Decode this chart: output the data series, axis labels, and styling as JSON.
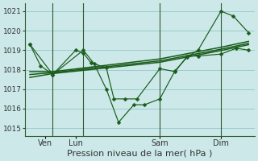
{
  "background_color": "#cce8e8",
  "grid_color": "#99cccc",
  "line_color": "#1a5c1a",
  "xlabel": "Pression niveau de la mer( hPa )",
  "yticks": [
    1015,
    1016,
    1017,
    1018,
    1019,
    1020,
    1021
  ],
  "ylim": [
    1014.6,
    1021.4
  ],
  "xlim": [
    -0.3,
    14.7
  ],
  "xtick_labels": [
    "Ven",
    "Lun",
    "Sam",
    "Dim"
  ],
  "xtick_positions": [
    1,
    3,
    8.5,
    12.5
  ],
  "vline_positions": [
    1.5,
    3.5,
    8.5,
    12.5
  ],
  "series_jagged_x": [
    0.0,
    0.7,
    1.5,
    3.0,
    3.5,
    4.0,
    5.0,
    5.5,
    6.2,
    7.0,
    8.5,
    9.5,
    10.3,
    11.0,
    12.5,
    13.5,
    14.3
  ],
  "series_jagged_y": [
    1019.3,
    1018.2,
    1017.75,
    1019.0,
    1018.85,
    1018.35,
    1018.1,
    1016.5,
    1016.5,
    1016.5,
    1018.05,
    1017.9,
    1018.7,
    1018.7,
    1018.8,
    1019.1,
    1019.0
  ],
  "series_low_x": [
    0.0,
    1.5,
    3.5,
    4.2,
    5.0,
    5.8,
    6.8,
    7.5,
    8.5,
    9.5,
    10.3,
    11.0,
    12.5,
    13.3,
    14.3
  ],
  "series_low_y": [
    1019.3,
    1017.75,
    1019.0,
    1018.3,
    1017.0,
    1015.3,
    1016.2,
    1016.2,
    1016.5,
    1017.95,
    1018.65,
    1019.0,
    1021.0,
    1020.75,
    1019.9
  ],
  "trend1_x": [
    0.0,
    1.5,
    8.5,
    12.5,
    14.3
  ],
  "trend1_y": [
    1017.9,
    1017.9,
    1018.55,
    1019.15,
    1019.45
  ],
  "trend2_x": [
    0.0,
    1.5,
    8.5,
    12.5,
    14.3
  ],
  "trend2_y": [
    1017.75,
    1017.85,
    1018.45,
    1019.05,
    1019.35
  ],
  "trend3_x": [
    0.0,
    1.5,
    8.5,
    12.5,
    14.3
  ],
  "trend3_y": [
    1017.6,
    1017.8,
    1018.38,
    1018.98,
    1019.28
  ],
  "markersize": 2.5,
  "marker": "D",
  "vline_color": "#2d5a2d",
  "spine_color": "#2d5a2d",
  "tick_label_color": "#333333",
  "xlabel_fontsize": 8,
  "ytick_fontsize": 6.5,
  "xtick_fontsize": 7
}
